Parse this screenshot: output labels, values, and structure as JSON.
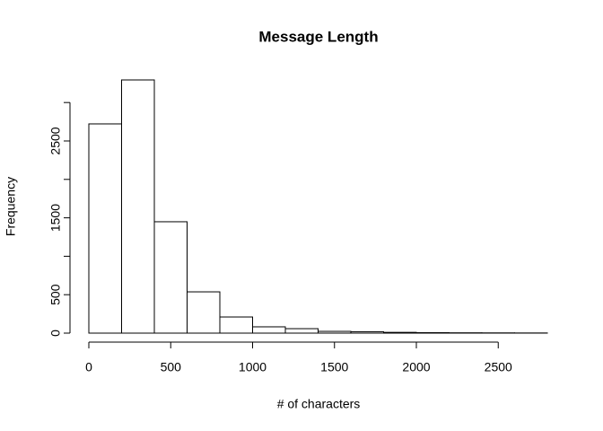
{
  "chart_data": {
    "type": "histogram",
    "title": "Message Length",
    "x_label": "# of characters",
    "y_label": "Frequency",
    "bins": [
      0,
      200,
      400,
      600,
      800,
      1000,
      1200,
      1400,
      1600,
      1800,
      2000,
      2200,
      2400,
      2600,
      2800
    ],
    "values": [
      2722,
      3294,
      1449,
      537,
      210,
      82,
      58,
      23,
      18,
      10,
      6,
      4,
      3,
      2
    ],
    "color": "#ffffff",
    "edge_color": "#000000",
    "xlim": [
      0,
      2800
    ],
    "xticks": [
      0,
      500,
      1000,
      1500,
      2000,
      2500
    ],
    "ylim": [
      0,
      3300
    ],
    "yticks": [
      0,
      500,
      1000,
      1500,
      2000,
      2500,
      3000
    ]
  }
}
